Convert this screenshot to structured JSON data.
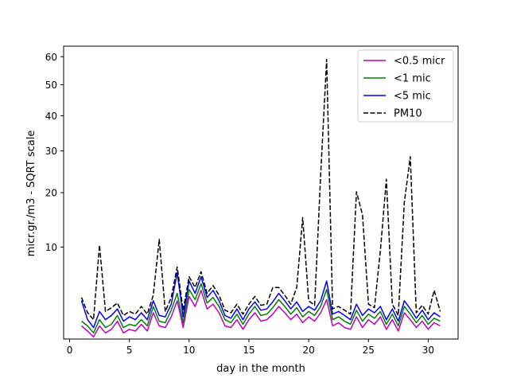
{
  "chart_data": {
    "type": "line",
    "title": "",
    "xlabel": "day in the month",
    "ylabel": "micr.gr./m3 - SQRT scale",
    "xlim": [
      -0.5,
      32.5
    ],
    "ylim": [
      0.9,
      64.0
    ],
    "y_scale": "sqrt",
    "x_ticks": [
      0,
      5,
      10,
      15,
      20,
      25,
      30
    ],
    "x_tick_labels": [
      "0",
      "5",
      "10",
      "15",
      "20",
      "25",
      "30"
    ],
    "y_ticks": [
      10,
      20,
      30,
      40,
      50,
      60
    ],
    "y_tick_labels": [
      "10",
      "20",
      "30",
      "40",
      "50",
      "60"
    ],
    "grid": false,
    "legend_position": "top-right",
    "legend": [
      "<0.5 micr",
      "<1 mic",
      "<5 mic",
      "PM10"
    ],
    "colors": {
      "pm05": "#bf00bf",
      "pm1": "#008000",
      "pm5": "#0000ff",
      "pm10": "#000000"
    },
    "series": [
      {
        "name": "<0.5 micr",
        "key": "pm05",
        "style": "solid",
        "x": [
          1.0,
          1.5,
          2.0,
          2.5,
          3.0,
          3.5,
          4.0,
          4.5,
          5.0,
          5.5,
          6.0,
          6.5,
          7.0,
          7.5,
          8.0,
          8.5,
          9.0,
          9.5,
          10.0,
          10.5,
          11.0,
          11.5,
          12.0,
          12.5,
          13.0,
          13.5,
          14.0,
          14.5,
          15.0,
          15.5,
          16.0,
          16.5,
          17.0,
          17.5,
          18.0,
          18.5,
          19.0,
          19.5,
          20.0,
          20.5,
          21.0,
          21.5,
          22.0,
          22.5,
          23.0,
          23.5,
          24.0,
          24.5,
          25.0,
          25.5,
          26.0,
          26.5,
          27.0,
          27.5,
          28.0,
          28.5,
          29.0,
          29.5,
          30.0,
          30.5,
          31.0
        ],
        "y": [
          1.6,
          1.3,
          1.0,
          1.6,
          1.2,
          1.4,
          1.9,
          1.2,
          1.4,
          1.3,
          1.7,
          1.3,
          2.5,
          1.6,
          1.5,
          2.2,
          3.5,
          1.5,
          3.9,
          3.0,
          4.5,
          2.8,
          3.2,
          2.5,
          1.6,
          1.5,
          2.0,
          1.4,
          2.0,
          2.5,
          1.9,
          2.0,
          2.4,
          3.0,
          2.5,
          2.0,
          2.4,
          1.8,
          2.2,
          1.9,
          2.5,
          3.6,
          1.6,
          1.8,
          1.5,
          1.4,
          2.2,
          1.5,
          2.0,
          1.7,
          2.2,
          1.4,
          2.0,
          1.3,
          2.5,
          2.0,
          1.5,
          1.9,
          1.4,
          1.8,
          1.6
        ]
      },
      {
        "name": "<1 mic",
        "key": "pm1",
        "style": "solid",
        "x": [
          1.0,
          1.5,
          2.0,
          2.5,
          3.0,
          3.5,
          4.0,
          4.5,
          5.0,
          5.5,
          6.0,
          6.5,
          7.0,
          7.5,
          8.0,
          8.5,
          9.0,
          9.5,
          10.0,
          10.5,
          11.0,
          11.5,
          12.0,
          12.5,
          13.0,
          13.5,
          14.0,
          14.5,
          15.0,
          15.5,
          16.0,
          16.5,
          17.0,
          17.5,
          18.0,
          18.5,
          19.0,
          19.5,
          20.0,
          20.5,
          21.0,
          21.5,
          22.0,
          22.5,
          23.0,
          23.5,
          24.0,
          24.5,
          25.0,
          25.5,
          26.0,
          26.5,
          27.0,
          27.5,
          28.0,
          28.5,
          29.0,
          29.5,
          30.0,
          30.5,
          31.0
        ],
        "y": [
          1.9,
          1.6,
          1.2,
          2.0,
          1.5,
          1.7,
          2.3,
          1.5,
          1.7,
          1.6,
          2.0,
          1.6,
          3.0,
          1.9,
          1.8,
          2.7,
          4.2,
          1.8,
          4.6,
          3.6,
          5.2,
          3.3,
          3.8,
          3.0,
          2.0,
          1.8,
          2.4,
          1.7,
          2.4,
          3.0,
          2.3,
          2.4,
          2.9,
          3.6,
          3.0,
          2.4,
          2.9,
          2.2,
          2.6,
          2.3,
          3.0,
          4.6,
          2.0,
          2.2,
          1.9,
          1.7,
          2.7,
          1.9,
          2.4,
          2.1,
          2.6,
          1.7,
          2.4,
          1.6,
          3.0,
          2.4,
          1.8,
          2.3,
          1.7,
          2.1,
          1.9
        ]
      },
      {
        "name": "<5 mic",
        "key": "pm5",
        "style": "solid",
        "x": [
          1.0,
          1.5,
          2.0,
          2.5,
          3.0,
          3.5,
          4.0,
          4.5,
          5.0,
          5.5,
          6.0,
          6.5,
          7.0,
          7.5,
          8.0,
          8.5,
          9.0,
          9.5,
          10.0,
          10.5,
          11.0,
          11.5,
          12.0,
          12.5,
          13.0,
          13.5,
          14.0,
          14.5,
          15.0,
          15.5,
          16.0,
          16.5,
          17.0,
          17.5,
          18.0,
          18.5,
          19.0,
          19.5,
          20.0,
          20.5,
          21.0,
          21.5,
          22.0,
          22.5,
          23.0,
          23.5,
          24.0,
          24.5,
          25.0,
          25.5,
          26.0,
          26.5,
          27.0,
          27.5,
          28.0,
          28.5,
          29.0,
          29.5,
          30.0,
          30.5,
          31.0
        ],
        "y": [
          3.5,
          2.0,
          1.5,
          2.6,
          2.0,
          2.3,
          2.8,
          1.9,
          2.2,
          2.0,
          2.5,
          2.0,
          3.5,
          2.3,
          2.2,
          3.2,
          6.5,
          2.2,
          5.5,
          4.2,
          6.0,
          3.8,
          4.5,
          3.5,
          2.3,
          2.1,
          2.8,
          2.0,
          2.8,
          3.4,
          2.7,
          2.8,
          3.4,
          4.2,
          3.5,
          2.8,
          3.4,
          2.6,
          3.0,
          2.7,
          3.5,
          5.5,
          2.4,
          2.6,
          2.3,
          2.0,
          3.2,
          2.3,
          2.8,
          2.5,
          3.0,
          2.0,
          2.8,
          1.9,
          3.5,
          2.8,
          2.1,
          2.7,
          2.0,
          2.5,
          2.2
        ]
      },
      {
        "name": "PM10",
        "key": "pm10",
        "style": "dashed",
        "x": [
          1.0,
          1.5,
          2.0,
          2.5,
          3.0,
          3.5,
          4.0,
          4.5,
          5.0,
          5.5,
          6.0,
          6.5,
          7.0,
          7.5,
          8.0,
          8.5,
          9.0,
          9.5,
          10.0,
          10.5,
          11.0,
          11.5,
          12.0,
          12.5,
          13.0,
          13.5,
          14.0,
          14.5,
          15.0,
          15.5,
          16.0,
          16.5,
          17.0,
          17.5,
          18.0,
          18.5,
          19.0,
          19.5,
          20.0,
          20.5,
          21.0,
          21.5,
          22.0,
          22.5,
          23.0,
          23.5,
          24.0,
          24.5,
          25.0,
          25.5,
          26.0,
          26.5,
          27.0,
          27.5,
          28.0,
          28.5,
          29.0,
          29.5,
          30.0,
          30.5,
          31.0
        ],
        "y": [
          3.8,
          2.5,
          2.0,
          10.3,
          2.6,
          2.9,
          3.3,
          2.3,
          2.6,
          2.4,
          3.0,
          2.4,
          4.0,
          11.2,
          2.6,
          3.8,
          7.2,
          2.7,
          6.0,
          4.8,
          6.6,
          4.2,
          5.0,
          4.0,
          2.7,
          2.5,
          3.2,
          2.4,
          3.2,
          3.9,
          3.1,
          3.2,
          4.8,
          4.8,
          4.0,
          3.2,
          4.8,
          15.0,
          3.5,
          3.1,
          24.0,
          59.0,
          2.8,
          3.0,
          2.7,
          2.4,
          20.2,
          15.5,
          3.2,
          2.9,
          9.5,
          23.0,
          3.2,
          2.3,
          18.0,
          28.5,
          2.5,
          3.1,
          2.4,
          4.5,
          2.6
        ]
      }
    ]
  }
}
